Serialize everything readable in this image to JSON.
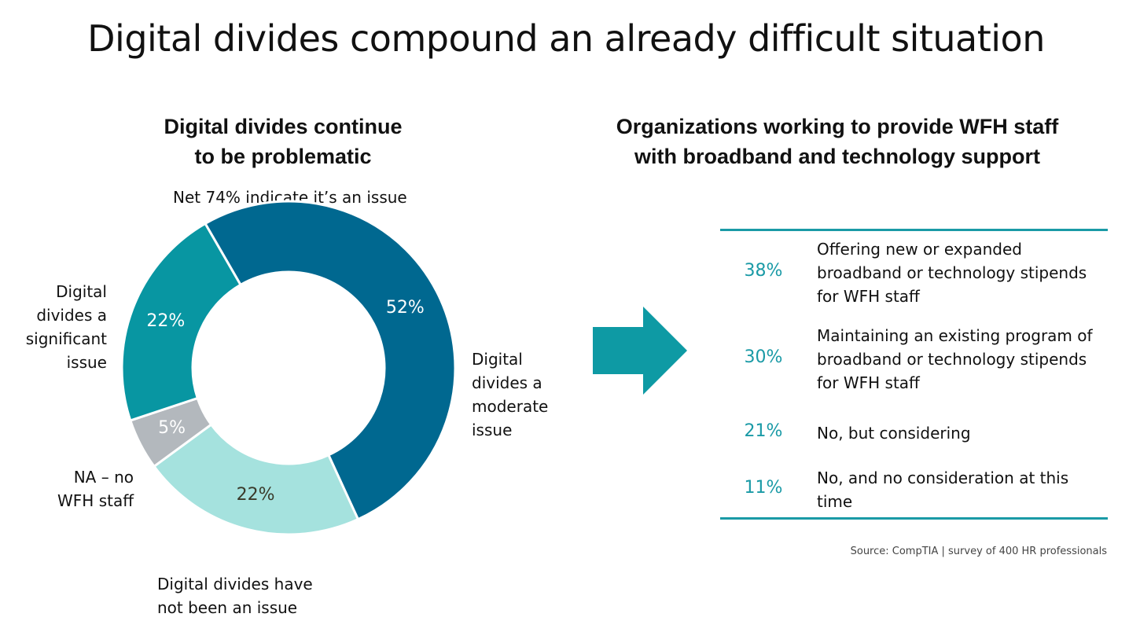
{
  "title": "Digital divides compound an already difficult situation",
  "left_panel": {
    "title_lines": [
      "Digital divides continue",
      "to be problematic"
    ],
    "net_label": "Net 74% indicate it’s an issue"
  },
  "right_panel": {
    "title_lines": [
      "Organizations working to provide WFH staff",
      "with broadband and technology support"
    ],
    "rows": [
      {
        "pct": "38%",
        "lines": [
          "Offering new or expanded",
          "broadband or technology stipends",
          "for WFH staff"
        ]
      },
      {
        "pct": "30%",
        "lines": [
          "Maintaining an existing program of",
          "broadband or technology stipends",
          "for WFH staff"
        ]
      },
      {
        "pct": "21%",
        "lines": [
          "No, but considering"
        ]
      },
      {
        "pct": "11%",
        "lines": [
          "No, and no consideration at this",
          "time"
        ]
      }
    ]
  },
  "source": "Source: CompTIA | survey of 400 HR professionals",
  "chart_data": {
    "type": "pie",
    "title": "Digital divides continue to be problematic",
    "subtitle": "Net 74% indicate it’s an issue",
    "slices": [
      {
        "label_lines": [
          "Digital",
          "divides a",
          "moderate",
          "issue"
        ],
        "value": 52,
        "data_label": "52%",
        "color": "#006890",
        "label_color": "#ffffff"
      },
      {
        "label_lines": [
          "Digital divides have",
          "not been an issue"
        ],
        "value": 22,
        "data_label": "22%",
        "color": "#a5e2de",
        "label_color": "#3a3a2a"
      },
      {
        "label_lines": [
          "NA – no",
          "WFH staff"
        ],
        "value": 5,
        "data_label": "5%",
        "color": "#b3b8bd",
        "label_color": "#ffffff"
      },
      {
        "label_lines": [
          "Digital",
          "divides a",
          "significant",
          "issue"
        ],
        "value": 22,
        "data_label": "22%",
        "color": "#0896a2",
        "label_color": "#ffffff"
      }
    ]
  },
  "colors": {
    "accent": "#1a9aa6",
    "arrow": "#0e9aa4"
  }
}
